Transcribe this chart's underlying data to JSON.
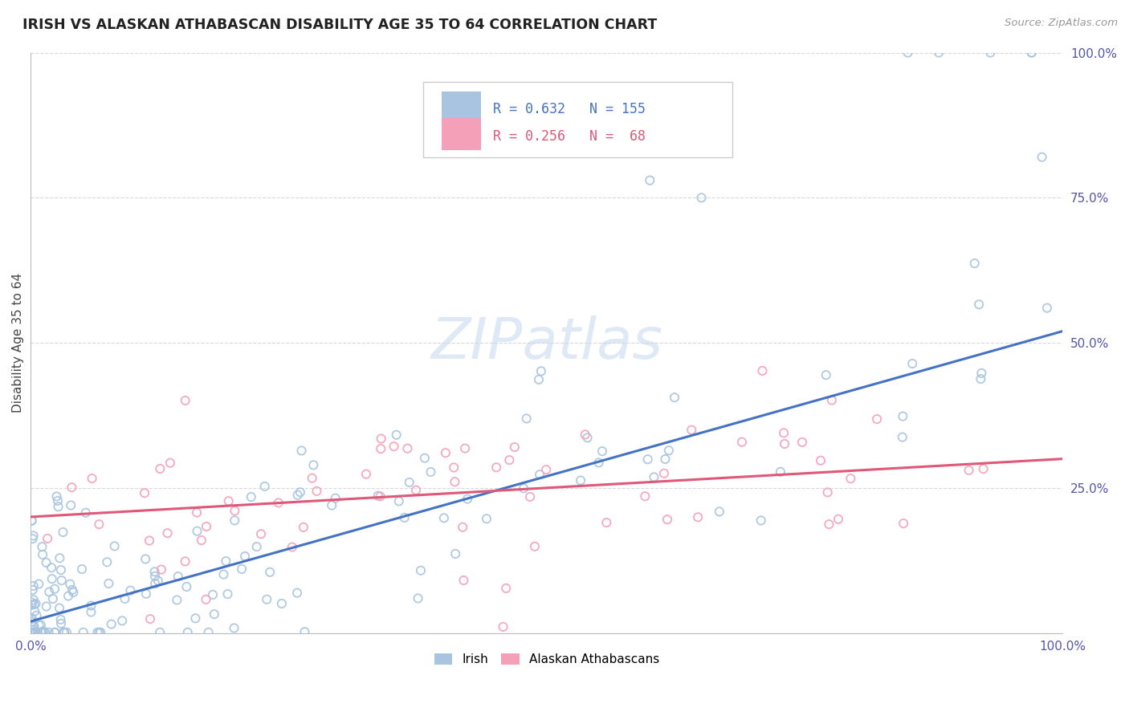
{
  "title": "IRISH VS ALASKAN ATHABASCAN DISABILITY AGE 35 TO 64 CORRELATION CHART",
  "source_text": "Source: ZipAtlas.com",
  "ylabel": "Disability Age 35 to 64",
  "xlim": [
    0.0,
    1.0
  ],
  "ylim": [
    0.0,
    1.0
  ],
  "ytick_positions": [
    0.0,
    0.25,
    0.5,
    0.75,
    1.0
  ],
  "ytick_labels": [
    "",
    "25.0%",
    "50.0%",
    "75.0%",
    "100.0%"
  ],
  "xtick_positions": [
    0.0,
    1.0
  ],
  "xtick_labels": [
    "0.0%",
    "100.0%"
  ],
  "irish_R": 0.632,
  "irish_N": 155,
  "athabascan_R": 0.256,
  "athabascan_N": 68,
  "irish_color": "#a8c4e0",
  "irish_line_color": "#4472c4",
  "athabascan_color": "#f4a0b8",
  "athabascan_line_color": "#e05878",
  "watermark": "ZIPatlas",
  "background_color": "#ffffff",
  "grid_color": "#d8d8d8",
  "title_color": "#222222",
  "source_color": "#999999",
  "tick_color": "#5555aa",
  "ylabel_color": "#444444",
  "legend_border_color": "#cccccc",
  "irish_line_start_y": 0.02,
  "irish_line_end_y": 0.52,
  "ath_line_start_y": 0.2,
  "ath_line_end_y": 0.3
}
